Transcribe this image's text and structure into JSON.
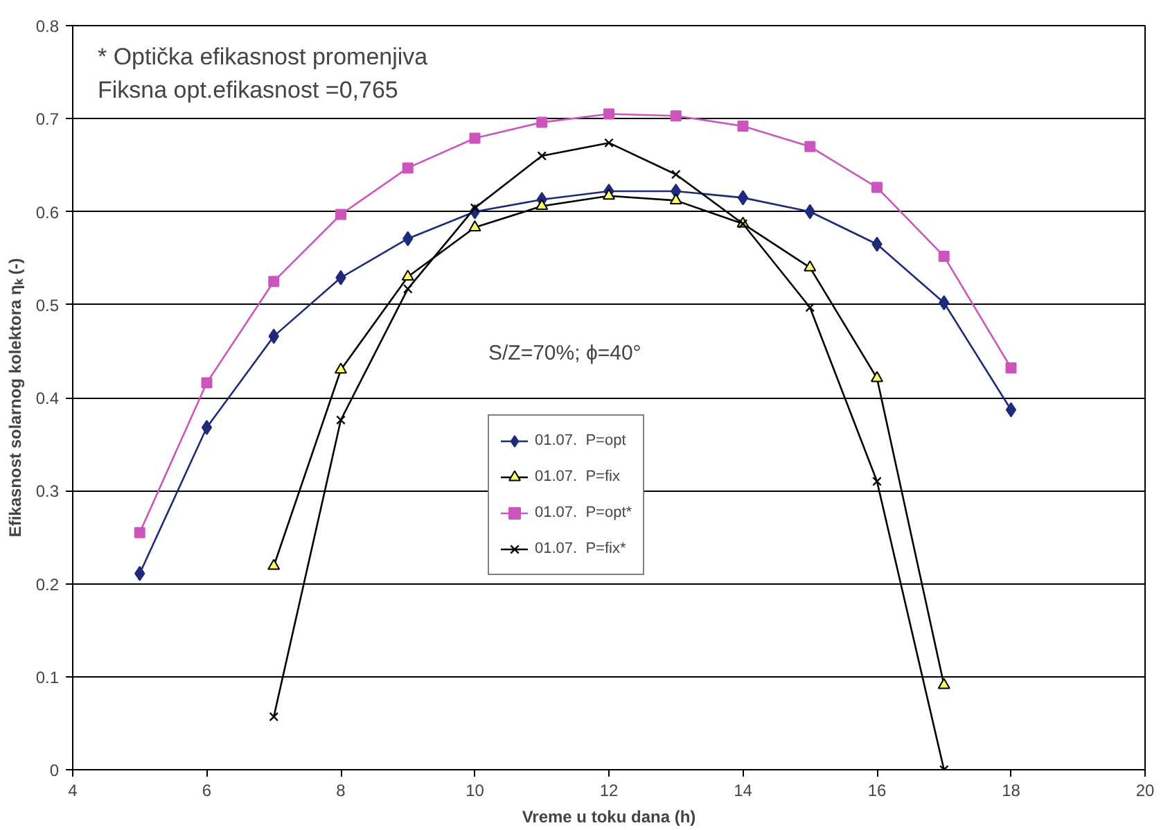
{
  "chart_data": {
    "type": "line",
    "xlabel": "Vreme u toku dana (h)",
    "ylabel": "Efikasnost solarnog kolektora ηₖ (-)",
    "xlim": [
      4,
      20
    ],
    "xticks": [
      4,
      6,
      8,
      10,
      12,
      14,
      16,
      18,
      20
    ],
    "ylim": [
      0,
      0.8
    ],
    "yticks": [
      0,
      0.1,
      0.2,
      0.3,
      0.4,
      0.5,
      0.6,
      0.7,
      0.8
    ],
    "grid": "y",
    "legend": "center",
    "line_style": "solid",
    "annotations": [
      "* Optička efikasnost promenjiva",
      "Fiksna opt.efikasnost =0,765",
      "S/Z=70%; ϕ=40°"
    ],
    "series": [
      {
        "name": "01.07.  P=opt",
        "color": "#1f2a7a",
        "marker": "diamond",
        "x": [
          5,
          6,
          7,
          8,
          9,
          10,
          11,
          12,
          13,
          14,
          15,
          16,
          17,
          18
        ],
        "values": [
          0.211,
          0.368,
          0.466,
          0.529,
          0.571,
          0.6,
          0.613,
          0.622,
          0.622,
          0.615,
          0.6,
          0.565,
          0.502,
          0.387
        ]
      },
      {
        "name": "01.07.  P=fix",
        "color": "#000000",
        "marker": "triangle",
        "x": [
          7,
          8,
          9,
          10,
          11,
          12,
          13,
          14,
          15,
          16,
          17
        ],
        "values": [
          0.219,
          0.43,
          0.53,
          0.583,
          0.606,
          0.617,
          0.612,
          0.587,
          0.54,
          0.421,
          0.091
        ]
      },
      {
        "name": "01.07.  P=opt*",
        "color": "#cc55bb",
        "marker": "square",
        "x": [
          5,
          6,
          7,
          8,
          9,
          10,
          11,
          12,
          13,
          14,
          15,
          16,
          17,
          18
        ],
        "values": [
          0.255,
          0.416,
          0.525,
          0.597,
          0.647,
          0.679,
          0.696,
          0.705,
          0.703,
          0.692,
          0.67,
          0.626,
          0.552,
          0.432
        ]
      },
      {
        "name": "01.07.  P=fix*",
        "color": "#000000",
        "marker": "cross",
        "x": [
          7,
          8,
          9,
          10,
          11,
          12,
          13,
          14,
          15,
          16,
          17
        ],
        "values": [
          0.057,
          0.376,
          0.517,
          0.604,
          0.66,
          0.674,
          0.64,
          0.587,
          0.497,
          0.31,
          0.0
        ]
      }
    ]
  }
}
